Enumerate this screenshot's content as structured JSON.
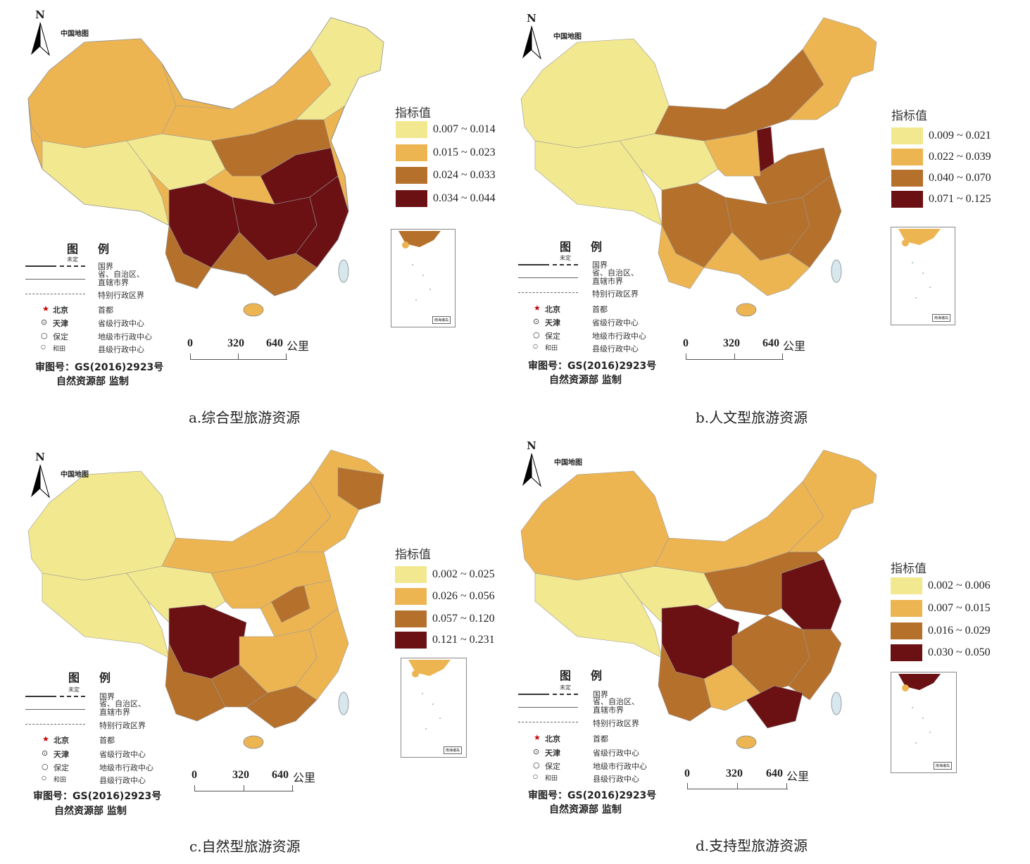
{
  "map_title": "中国地图",
  "north_label": "N",
  "legend_title": "指标值",
  "tuli": {
    "title": "图例",
    "undetermined": "未定",
    "national_border": "国界",
    "province_border": "省、自治区、\n直辖市界",
    "special_border": "特别行政区界",
    "capital_sample": "北京",
    "capital_label": "首都",
    "provincial_sample": "天津",
    "provincial_label": "省级行政中心",
    "prefecture_sample": "保定",
    "prefecture_label": "地级市行政中心",
    "county_sample": "和田",
    "county_label": "县级行政中心"
  },
  "scale": {
    "t0": "0",
    "t1": "320",
    "t2": "640",
    "unit": "公里"
  },
  "approval_no": "审图号：GS(2016)2923号",
  "supervisor": "自然资源部  监制",
  "inset_label": "南海诸岛",
  "colors": {
    "c1": "#f2e88f",
    "c2": "#edb552",
    "c3": "#b5702c",
    "c4": "#6b1114"
  },
  "panels": [
    {
      "caption": "a.综合型旅游资源",
      "ranges": [
        "0.007 ~ 0.014",
        "0.015 ~ 0.023",
        "0.024 ~ 0.033",
        "0.034 ~ 0.044"
      ]
    },
    {
      "caption": "b.人文型旅游资源",
      "ranges": [
        "0.009 ~ 0.021",
        "0.022 ~ 0.039",
        "0.040 ~ 0.070",
        "0.071 ~ 0.125"
      ]
    },
    {
      "caption": "c.自然型旅游资源",
      "ranges": [
        "0.002 ~ 0.025",
        "0.026 ~ 0.056",
        "0.057 ~ 0.120",
        "0.121 ~ 0.231"
      ]
    },
    {
      "caption": "d.支持型旅游资源",
      "ranges": [
        "0.002 ~ 0.006",
        "0.007 ~ 0.015",
        "0.016 ~ 0.029",
        "0.030 ~ 0.050"
      ]
    }
  ]
}
